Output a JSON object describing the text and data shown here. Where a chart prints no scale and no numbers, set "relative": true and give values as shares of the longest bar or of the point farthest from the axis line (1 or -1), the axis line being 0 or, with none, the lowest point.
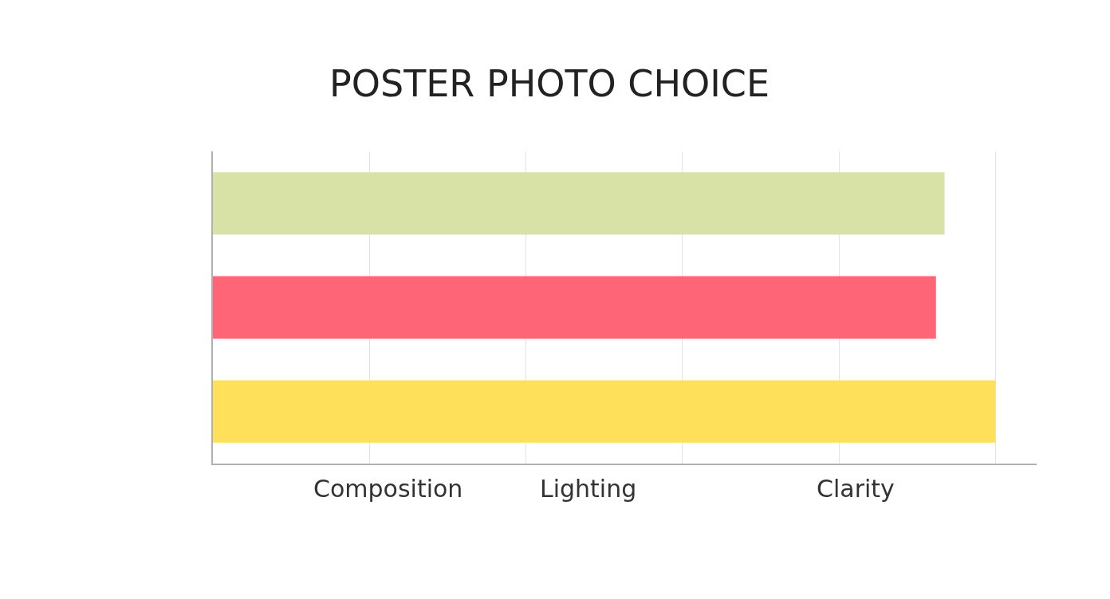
{
  "chart_data": {
    "type": "bar",
    "orientation": "horizontal",
    "relative": true,
    "title": "POSTER PHOTO CHOICE",
    "categories": [
      null,
      null,
      null
    ],
    "values": [
      0.935,
      0.924,
      1
    ],
    "colors": [
      "#d9e2a6",
      "#fe6677",
      "#fee05a"
    ],
    "annotations": [
      "Composition",
      "Lighting",
      "Clarity"
    ],
    "grid": "x",
    "legend": false
  }
}
